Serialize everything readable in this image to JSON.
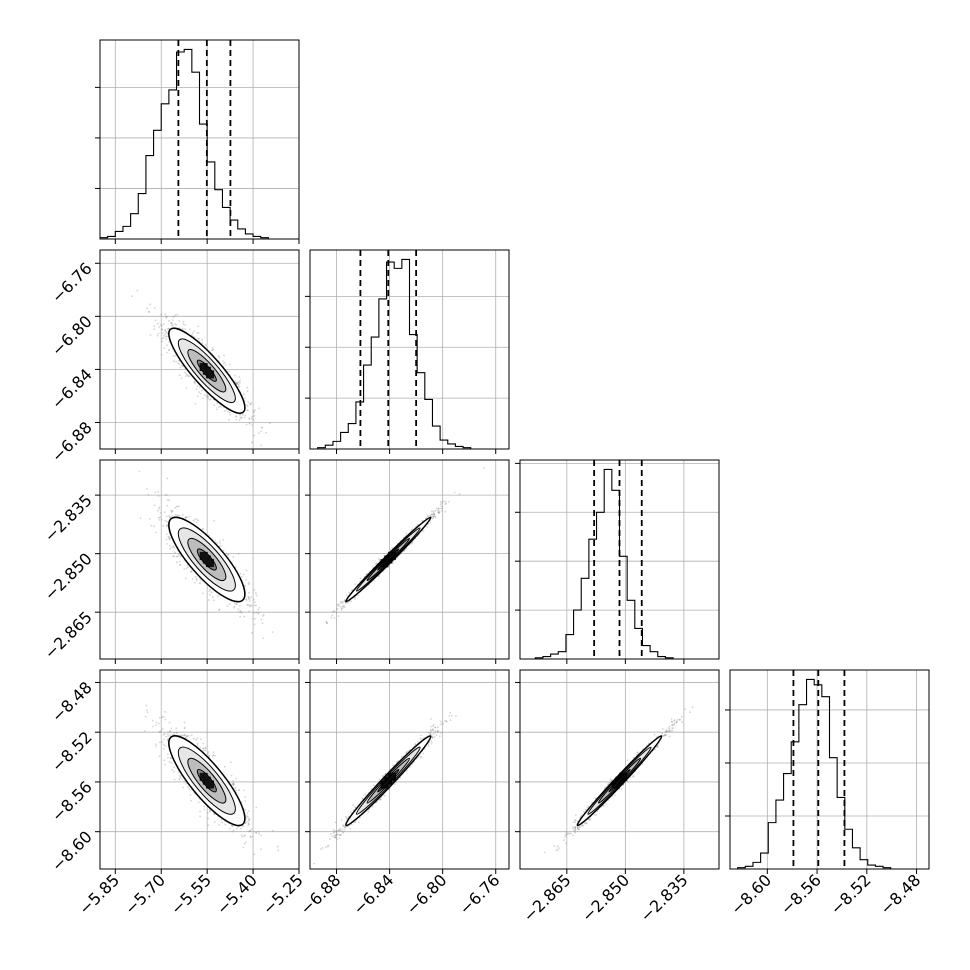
{
  "chart_data": {
    "type": "corner",
    "title": "",
    "grid": true,
    "quantiles": [
      0.16,
      0.5,
      0.84
    ],
    "parameters": [
      {
        "name": "",
        "range": [
          -5.9,
          -5.25
        ],
        "ticks": [
          -5.85,
          -5.7,
          -5.55,
          -5.4,
          -5.25
        ],
        "tick_labels": [
          "−5.85",
          "−5.70",
          "−5.55",
          "−5.40",
          "−5.25"
        ],
        "mean": -5.551,
        "sd": 0.062,
        "quantile_values": [
          -5.644,
          -5.551,
          -5.474
        ],
        "hist_bins": [
          -5.9,
          -5.25,
          26
        ],
        "hist_counts": [
          1,
          2,
          6,
          10,
          20,
          36,
          66,
          86,
          107,
          118,
          148,
          150,
          132,
          91,
          61,
          39,
          25,
          15,
          8,
          4,
          2,
          1,
          0,
          0,
          0,
          0
        ]
      },
      {
        "name": "",
        "range": [
          -6.9,
          -6.75
        ],
        "ticks": [
          -6.88,
          -6.84,
          -6.8,
          -6.76
        ],
        "tick_labels": [
          "−6.88",
          "−6.84",
          "−6.80",
          "−6.76"
        ],
        "mean": -6.841,
        "sd": 0.016,
        "quantile_values": [
          -6.862,
          -6.841,
          -6.82
        ],
        "hist_bins": [
          -6.9,
          -6.75,
          26
        ],
        "hist_counts": [
          0,
          1,
          3,
          6,
          13,
          20,
          37,
          66,
          88,
          118,
          147,
          142,
          149,
          90,
          60,
          39,
          18,
          7,
          4,
          2,
          1,
          0,
          0,
          0,
          0,
          0
        ]
      },
      {
        "name": "",
        "range": [
          -2.877,
          -2.826
        ],
        "ticks": [
          -2.865,
          -2.85,
          -2.835
        ],
        "tick_labels": [
          "−2.865",
          "−2.850",
          "−2.835"
        ],
        "mean": -2.8515,
        "sd": 0.0054,
        "quantile_values": [
          -2.858,
          -2.8515,
          -2.8458
        ],
        "hist_bins": [
          -2.877,
          -2.826,
          26
        ],
        "hist_counts": [
          0,
          0,
          1,
          2,
          4,
          6,
          20,
          40,
          66,
          98,
          120,
          155,
          138,
          84,
          48,
          25,
          11,
          6,
          2,
          1,
          0,
          0,
          0,
          0,
          0,
          0
        ]
      },
      {
        "name": "",
        "range": [
          -8.63,
          -8.47
        ],
        "ticks": [
          -8.6,
          -8.56,
          -8.52,
          -8.48
        ],
        "tick_labels": [
          "−8.60",
          "−8.56",
          "−8.52",
          "−8.48"
        ],
        "mean": -8.559,
        "sd": 0.018,
        "quantile_values": [
          -8.579,
          -8.559,
          -8.538
        ],
        "hist_bins": [
          -8.63,
          -8.47,
          26
        ],
        "hist_counts": [
          0,
          1,
          2,
          5,
          12,
          35,
          52,
          72,
          96,
          124,
          143,
          139,
          130,
          84,
          54,
          30,
          16,
          7,
          3,
          2,
          1,
          0,
          0,
          0,
          0,
          0
        ]
      }
    ],
    "pairs": [
      {
        "x": 0,
        "y": 1,
        "corr": -0.87,
        "scatter_color": "#888888"
      },
      {
        "x": 0,
        "y": 2,
        "corr": -0.82,
        "scatter_color": "#888888"
      },
      {
        "x": 1,
        "y": 2,
        "corr": 0.992,
        "scatter_color": "#888888"
      },
      {
        "x": 0,
        "y": 3,
        "corr": -0.84,
        "scatter_color": "#888888"
      },
      {
        "x": 1,
        "y": 3,
        "corr": 0.985,
        "scatter_color": "#888888"
      },
      {
        "x": 2,
        "y": 3,
        "corr": 0.99,
        "scatter_color": "#888888"
      }
    ]
  }
}
